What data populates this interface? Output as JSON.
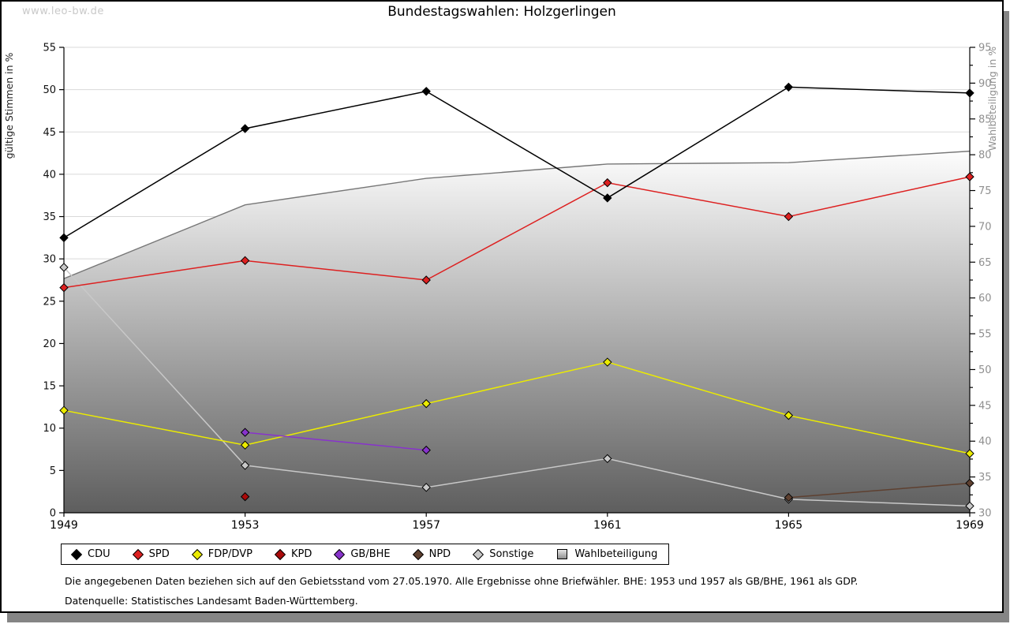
{
  "watermark": "www.leo-bw.de",
  "title": "Bundestagswahlen: Holzgerlingen",
  "chart_data": {
    "type": "line",
    "title": "Bundestagswahlen: Holzgerlingen",
    "x": [
      1949,
      1953,
      1957,
      1961,
      1965,
      1969
    ],
    "left_axis": {
      "label": "gültige Stimmen in %",
      "min": 0,
      "max": 55,
      "step": 5
    },
    "right_axis": {
      "label": "Wahlbeteiligung in %",
      "min": 30,
      "max": 95,
      "step": 5,
      "minor_step": 2.5
    },
    "grid": true,
    "legend_position": "bottom",
    "series": [
      {
        "name": "CDU",
        "color": "#000000",
        "values": [
          32.5,
          45.4,
          49.8,
          37.2,
          50.3,
          49.6
        ]
      },
      {
        "name": "SPD",
        "color": "#dd2020",
        "values": [
          26.6,
          29.8,
          27.5,
          39.0,
          35.0,
          39.7
        ]
      },
      {
        "name": "FDP/DVP",
        "color": "#ebeb00",
        "values": [
          12.1,
          8.0,
          12.9,
          17.8,
          11.5,
          7.0
        ]
      },
      {
        "name": "KPD",
        "color": "#aa0a0a",
        "values": [
          null,
          1.9,
          null,
          null,
          null,
          null
        ]
      },
      {
        "name": "GB/BHE",
        "color": "#8833cc",
        "values": [
          null,
          9.5,
          7.4,
          null,
          null,
          null
        ]
      },
      {
        "name": "NPD",
        "color": "#5e4030",
        "values": [
          null,
          null,
          null,
          null,
          1.8,
          3.5
        ]
      },
      {
        "name": "Sonstige",
        "color": "#c8c8c8",
        "values": [
          29.0,
          5.6,
          3.0,
          6.4,
          1.6,
          0.8
        ]
      }
    ],
    "area_series": {
      "name": "Wahlbeteiligung",
      "axis": "right",
      "values": [
        62.7,
        73.0,
        76.7,
        78.7,
        78.9,
        80.5
      ],
      "fill_top": "#fdfdfd",
      "fill_bottom": "#5e5e5e",
      "edge_color": "#777777"
    }
  },
  "legend": {
    "items": [
      {
        "label": "CDU",
        "color": "#000000",
        "shape": "diamond"
      },
      {
        "label": "SPD",
        "color": "#dd2020",
        "shape": "diamond"
      },
      {
        "label": "FDP/DVP",
        "color": "#ebeb00",
        "shape": "diamond"
      },
      {
        "label": "KPD",
        "color": "#aa0a0a",
        "shape": "diamond"
      },
      {
        "label": "GB/BHE",
        "color": "#8833cc",
        "shape": "diamond"
      },
      {
        "label": "NPD",
        "color": "#5e4030",
        "shape": "diamond"
      },
      {
        "label": "Sonstige",
        "color": "#c8c8c8",
        "shape": "diamond"
      },
      {
        "label": "Wahlbeteiligung",
        "color": "#aaaaaa",
        "shape": "square"
      }
    ]
  },
  "footnotes": {
    "line1": "Die angegebenen Daten beziehen sich auf den Gebietsstand vom 27.05.1970. Alle Ergebnisse ohne Briefwähler. BHE: 1953 und 1957 als GB/BHE, 1961 als GDP.",
    "line2": "Datenquelle: Statistisches Landesamt Baden-Württemberg."
  }
}
